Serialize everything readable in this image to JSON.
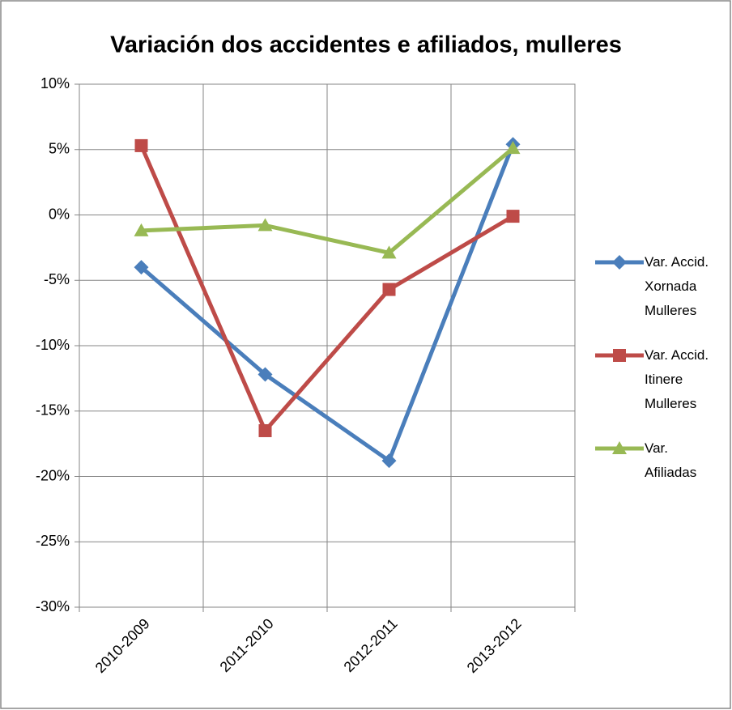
{
  "chart_data": {
    "type": "line",
    "title": "Variación dos accidentes e afiliados, mulleres",
    "categories": [
      "2010-2009",
      "2011-2010",
      "2012-2011",
      "2013-2012"
    ],
    "series": [
      {
        "name": "Var. Accid. Xornada Mulleres",
        "color": "#4a7ebb",
        "marker": "diamond",
        "values": [
          -4.0,
          -12.2,
          -18.8,
          5.4
        ]
      },
      {
        "name": "Var. Accid. Itinere Mulleres",
        "color": "#be4b48",
        "marker": "square",
        "values": [
          5.3,
          -16.5,
          -5.7,
          -0.1
        ]
      },
      {
        "name": "Var. Afiliadas",
        "color": "#98b954",
        "marker": "triangle",
        "values": [
          -1.2,
          -0.8,
          -2.9,
          5.1
        ]
      }
    ],
    "ylim": [
      -30,
      10
    ],
    "yticks": [
      {
        "value": -30,
        "label": "-30%"
      },
      {
        "value": -25,
        "label": "-25%"
      },
      {
        "value": -20,
        "label": "-20%"
      },
      {
        "value": -15,
        "label": "-15%"
      },
      {
        "value": -10,
        "label": "-10%"
      },
      {
        "value": -5,
        "label": "-5%"
      },
      {
        "value": 0,
        "label": "0%"
      },
      {
        "value": 5,
        "label": "5%"
      },
      {
        "value": 10,
        "label": "10%"
      }
    ],
    "grid": true,
    "legend": "right"
  }
}
